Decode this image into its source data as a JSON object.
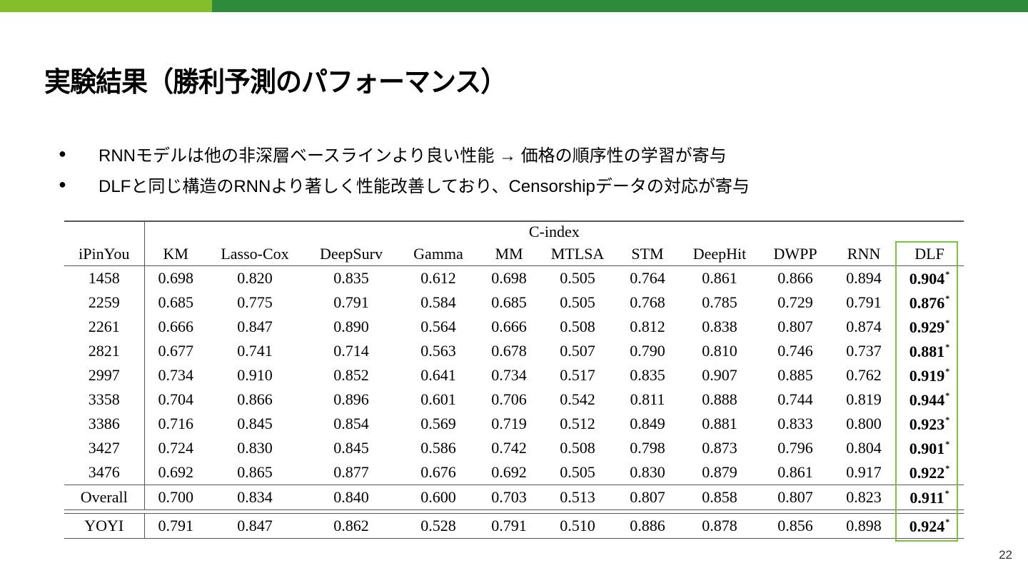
{
  "header": {
    "title": "実験結果（勝利予測のパフォーマンス）"
  },
  "bullets": [
    "RNNモデルは他の非深層ベースラインより良い性能 → 価格の順序性の学習が寄与",
    "DLFと同じ構造のRNNより著しく性能改善しており、Censorshipデータの対応が寄与"
  ],
  "table": {
    "group_header": "C-index",
    "columns": [
      "iPinYou",
      "KM",
      "Lasso-Cox",
      "DeepSurv",
      "Gamma",
      "MM",
      "MTLSA",
      "STM",
      "DeepHit",
      "DWPP",
      "RNN",
      "DLF"
    ],
    "significance_mark": "*",
    "rows": [
      [
        "1458",
        "0.698",
        "0.820",
        "0.835",
        "0.612",
        "0.698",
        "0.505",
        "0.764",
        "0.861",
        "0.866",
        "0.894",
        "0.904"
      ],
      [
        "2259",
        "0.685",
        "0.775",
        "0.791",
        "0.584",
        "0.685",
        "0.505",
        "0.768",
        "0.785",
        "0.729",
        "0.791",
        "0.876"
      ],
      [
        "2261",
        "0.666",
        "0.847",
        "0.890",
        "0.564",
        "0.666",
        "0.508",
        "0.812",
        "0.838",
        "0.807",
        "0.874",
        "0.929"
      ],
      [
        "2821",
        "0.677",
        "0.741",
        "0.714",
        "0.563",
        "0.678",
        "0.507",
        "0.790",
        "0.810",
        "0.746",
        "0.737",
        "0.881"
      ],
      [
        "2997",
        "0.734",
        "0.910",
        "0.852",
        "0.641",
        "0.734",
        "0.517",
        "0.835",
        "0.907",
        "0.885",
        "0.762",
        "0.919"
      ],
      [
        "3358",
        "0.704",
        "0.866",
        "0.896",
        "0.601",
        "0.706",
        "0.542",
        "0.811",
        "0.888",
        "0.744",
        "0.819",
        "0.944"
      ],
      [
        "3386",
        "0.716",
        "0.845",
        "0.854",
        "0.569",
        "0.719",
        "0.512",
        "0.849",
        "0.881",
        "0.833",
        "0.800",
        "0.923"
      ],
      [
        "3427",
        "0.724",
        "0.830",
        "0.845",
        "0.586",
        "0.742",
        "0.508",
        "0.798",
        "0.873",
        "0.796",
        "0.804",
        "0.901"
      ],
      [
        "3476",
        "0.692",
        "0.865",
        "0.877",
        "0.676",
        "0.692",
        "0.505",
        "0.830",
        "0.879",
        "0.861",
        "0.917",
        "0.922"
      ]
    ],
    "overall": [
      "Overall",
      "0.700",
      "0.834",
      "0.840",
      "0.600",
      "0.703",
      "0.513",
      "0.807",
      "0.858",
      "0.807",
      "0.823",
      "0.911"
    ],
    "yoyi": [
      "YOYI",
      "0.791",
      "0.847",
      "0.862",
      "0.528",
      "0.791",
      "0.510",
      "0.886",
      "0.878",
      "0.856",
      "0.898",
      "0.924"
    ]
  },
  "footer": {
    "page_number": "22"
  },
  "colors": {
    "accent_light": "#84be2b",
    "accent_dark": "#2e8b3c",
    "highlight_box": "#7fc241"
  }
}
